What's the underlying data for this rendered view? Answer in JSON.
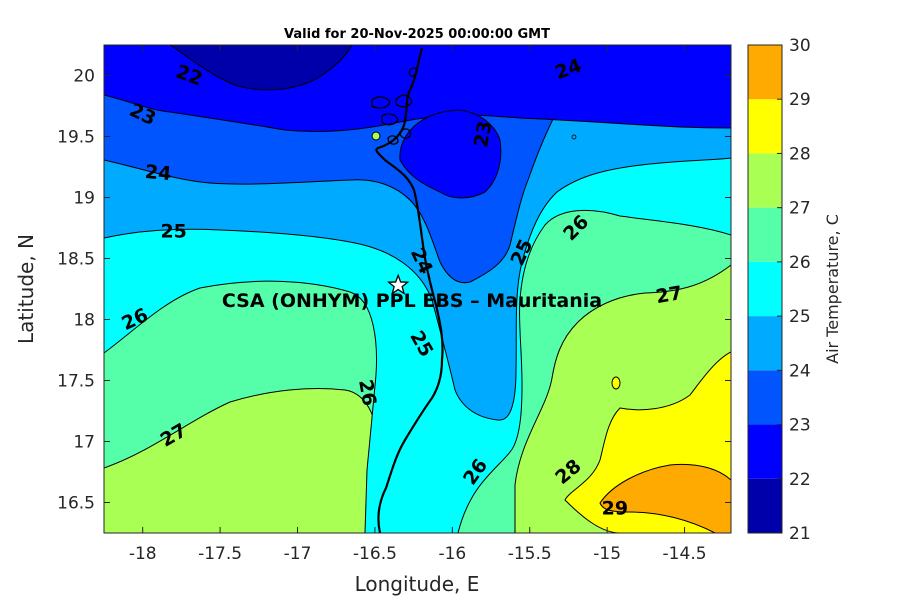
{
  "title": "Valid for 20-Nov-2025 00:00:00 GMT",
  "site_label": "CSA (ONHYM) PPL EBS  – Mauritania",
  "site_location": {
    "lon": -16.35,
    "lat": 18.28
  },
  "axes": {
    "xlabel": "Longitude, E",
    "ylabel": "Latitude, N",
    "xlim": [
      -18.25,
      -14.2
    ],
    "ylim": [
      16.25,
      20.25
    ],
    "xticks": [
      -18,
      -17.5,
      -17,
      -16.5,
      -16,
      -15.5,
      -15,
      -14.5
    ],
    "xtick_labels": [
      "-18",
      "-17.5",
      "-17",
      "-16.5",
      "-16",
      "-15.5",
      "-15",
      "-14.5"
    ],
    "yticks": [
      16.5,
      17,
      17.5,
      18,
      18.5,
      19,
      19.5,
      20
    ],
    "ytick_labels": [
      "16.5",
      "17",
      "17.5",
      "18",
      "18.5",
      "19",
      "19.5",
      "20"
    ]
  },
  "colorbar": {
    "label": "Air Temperature, C",
    "levels": [
      21,
      22,
      23,
      24,
      25,
      26,
      27,
      28,
      29,
      30
    ],
    "level_labels": [
      "21",
      "22",
      "23",
      "24",
      "25",
      "26",
      "27",
      "28",
      "29",
      "30"
    ],
    "colors": [
      "#0000AA",
      "#0000FF",
      "#0055FF",
      "#00AAFF",
      "#00FFFF",
      "#55FFAA",
      "#AAFF55",
      "#FFFF00",
      "#FFAA00",
      "#FF5500"
    ]
  },
  "contour_labels": [
    {
      "text": "22",
      "lon": -17.7,
      "lat": 20.0,
      "angle": 20
    },
    {
      "text": "23",
      "lon": -18.0,
      "lat": 19.68,
      "angle": 25
    },
    {
      "text": "24",
      "lon": -17.9,
      "lat": 19.2,
      "angle": 5
    },
    {
      "text": "25",
      "lon": -17.8,
      "lat": 18.72,
      "angle": 0
    },
    {
      "text": "26",
      "lon": -18.05,
      "lat": 18.0,
      "angle": -25
    },
    {
      "text": "27",
      "lon": -17.8,
      "lat": 17.05,
      "angle": -30
    },
    {
      "text": "26",
      "lon": -16.55,
      "lat": 17.4,
      "angle": 80
    },
    {
      "text": "25",
      "lon": -16.2,
      "lat": 17.8,
      "angle": 60
    },
    {
      "text": "24",
      "lon": -16.2,
      "lat": 18.48,
      "angle": 65
    },
    {
      "text": "23",
      "lon": -15.8,
      "lat": 19.52,
      "angle": -80
    },
    {
      "text": "24",
      "lon": -15.25,
      "lat": 20.05,
      "angle": -20
    },
    {
      "text": "25",
      "lon": -15.55,
      "lat": 18.55,
      "angle": -65
    },
    {
      "text": "26",
      "lon": -15.2,
      "lat": 18.75,
      "angle": -45
    },
    {
      "text": "27",
      "lon": -14.6,
      "lat": 18.2,
      "angle": -10
    },
    {
      "text": "26",
      "lon": -15.85,
      "lat": 16.75,
      "angle": -55
    },
    {
      "text": "28",
      "lon": -15.25,
      "lat": 16.75,
      "angle": -40
    },
    {
      "text": "29",
      "lon": -14.95,
      "lat": 16.45,
      "angle": 0
    }
  ]
}
